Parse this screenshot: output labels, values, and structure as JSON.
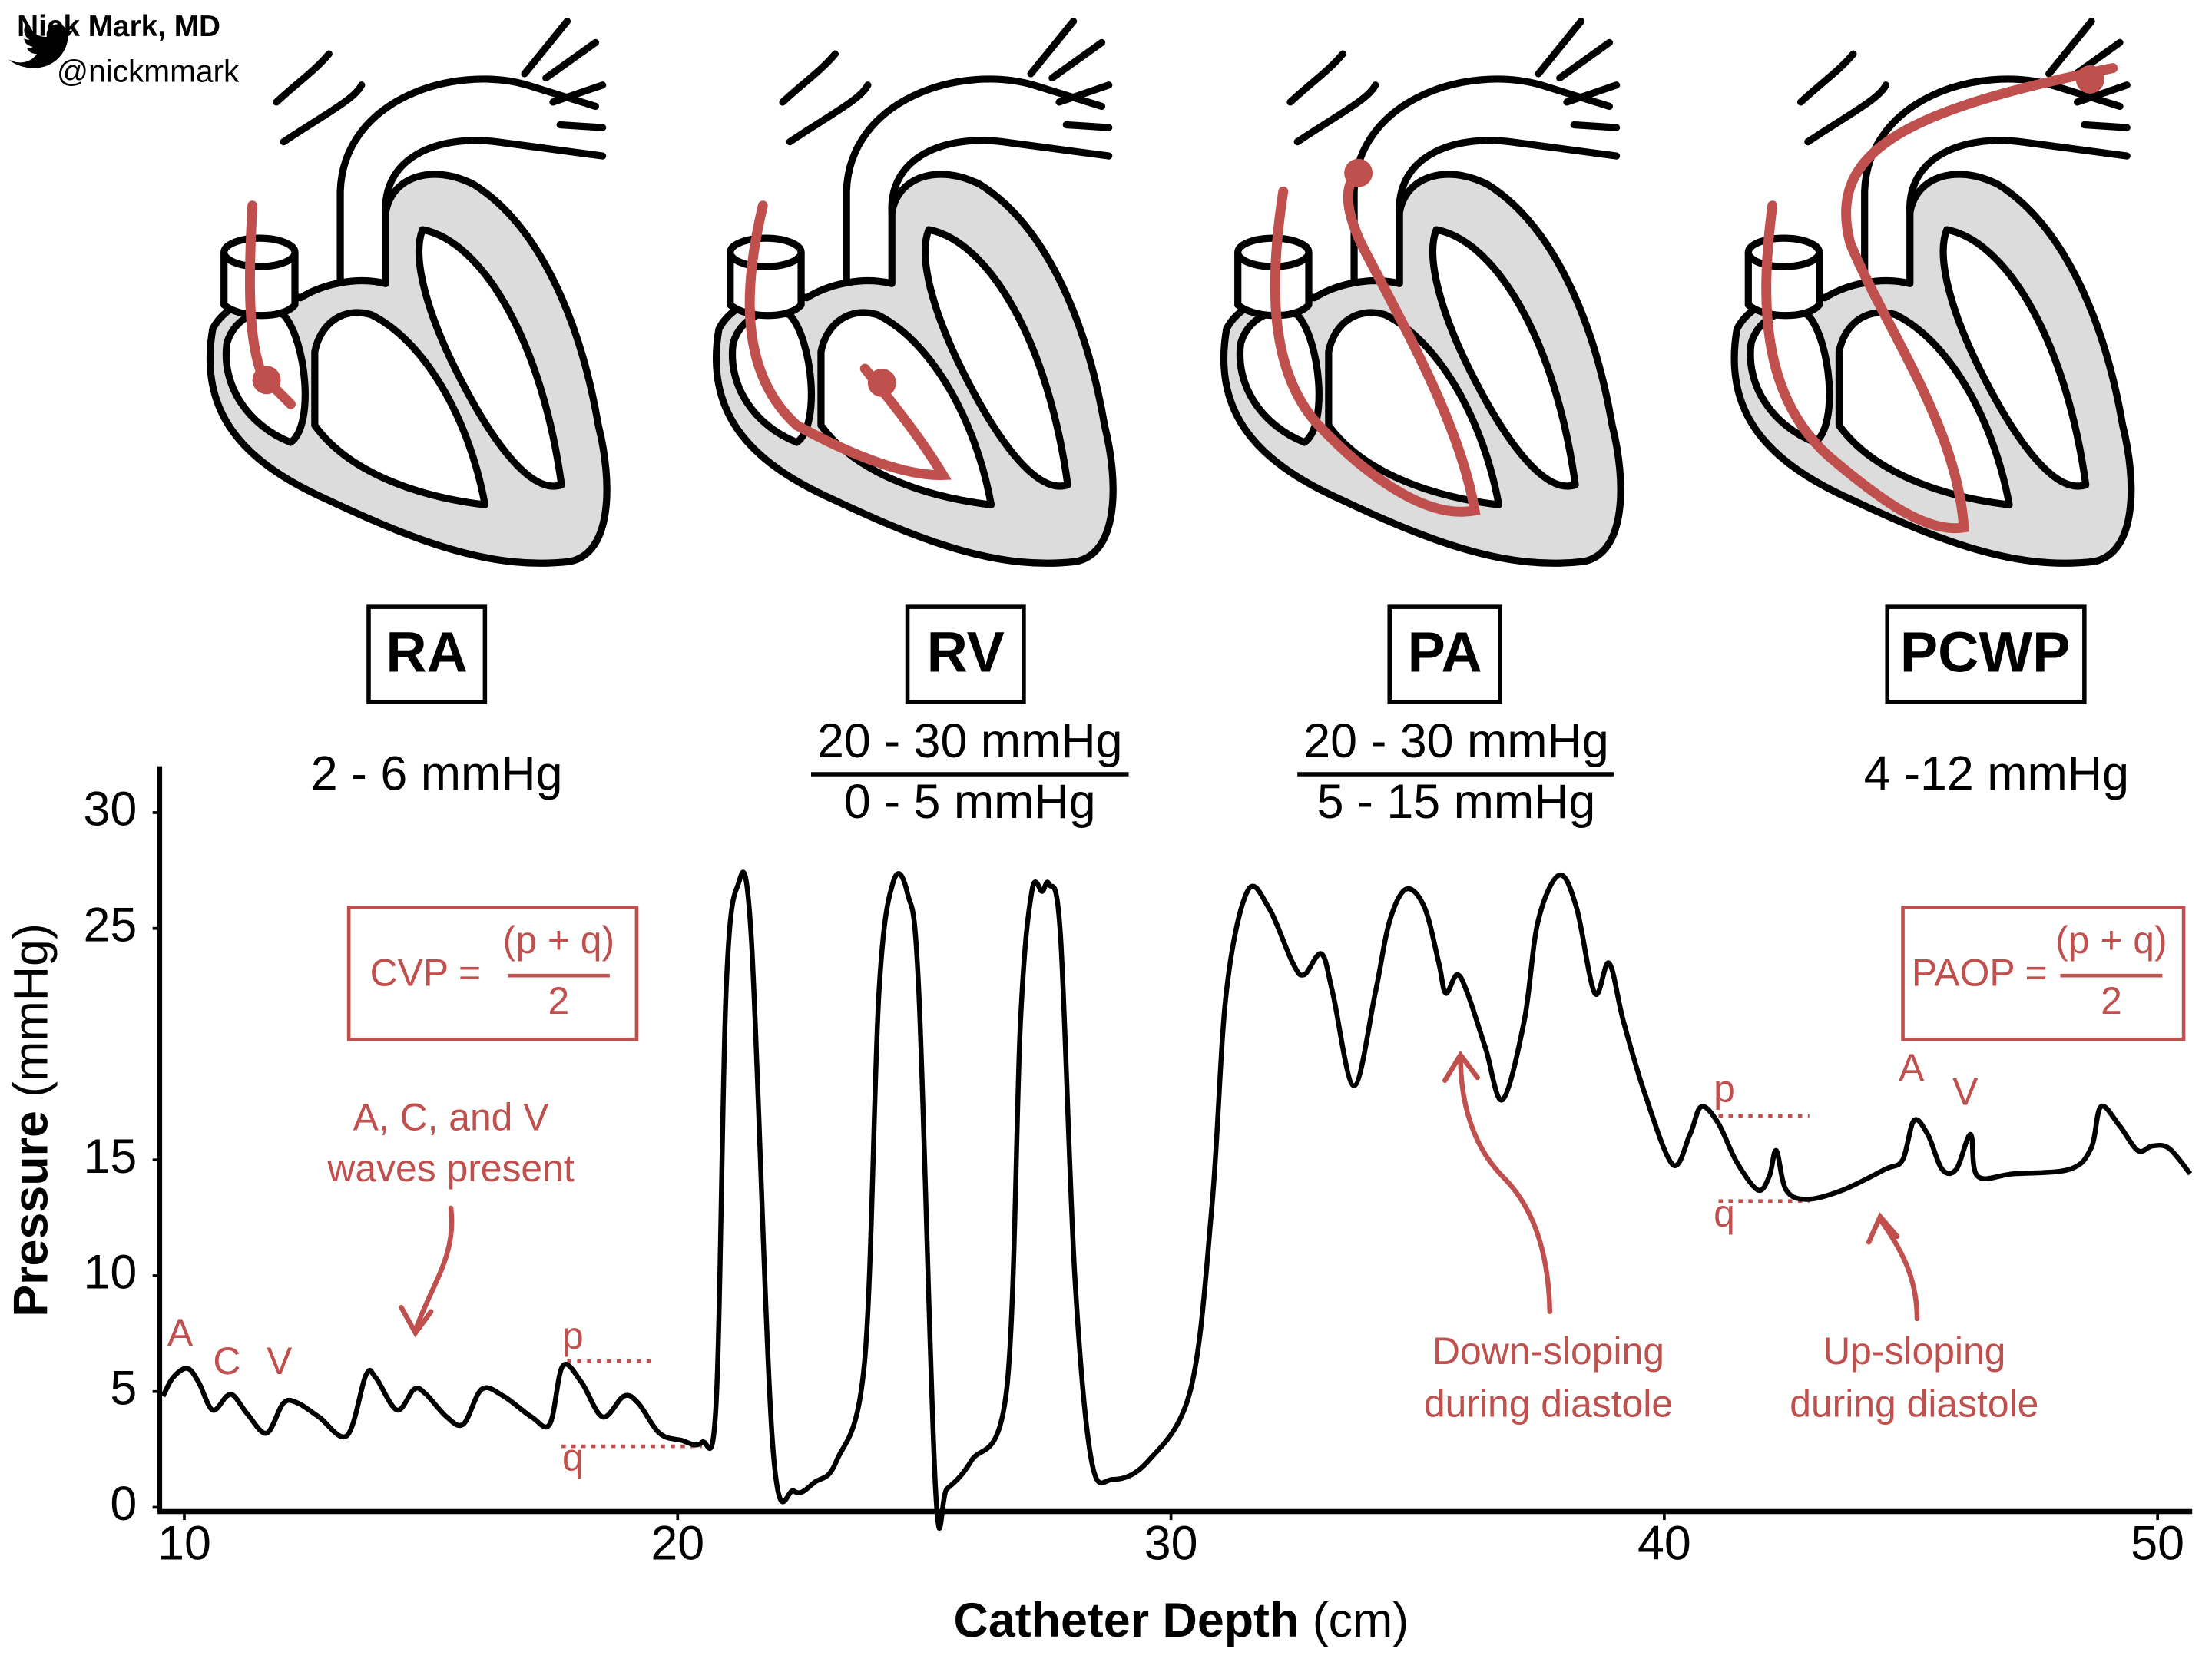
{
  "author": "Nick Mark, MD",
  "handle": "@nickmmark",
  "panels": [
    {
      "label": "RA",
      "pressure": [
        "2 - 6 mmHg"
      ]
    },
    {
      "label": "RV",
      "pressure": [
        "20 - 30 mmHg",
        "0 - 5 mmHg"
      ]
    },
    {
      "label": "PA",
      "pressure": [
        "20 - 30 mmHg",
        "5 - 15 mmHg"
      ]
    },
    {
      "label": "PCWP",
      "pressure": [
        "4 -12 mmHg"
      ]
    }
  ],
  "formulas": [
    {
      "name": "CVP =",
      "numerator": "(p + q)",
      "denominator": "2"
    },
    {
      "name": "PAOP =",
      "numerator": "(p + q)",
      "denominator": "2"
    }
  ],
  "annotations": {
    "acv": [
      "A, C, and V",
      "waves present"
    ],
    "ra_waves": [
      "A",
      "C",
      "V"
    ],
    "ra_p": "p",
    "ra_q": "q",
    "down": [
      "Down-sloping",
      "during diastole"
    ],
    "up": [
      "Up-sloping",
      "during diastole"
    ],
    "pcwp_p": "p",
    "pcwp_q": "q",
    "pcwp_waves": [
      "A",
      "V"
    ]
  },
  "chart_data": {
    "type": "line",
    "xlabel": [
      "Catheter Depth",
      "(cm)"
    ],
    "ylabel": [
      "Pressure",
      "(mmHg)"
    ],
    "xlim": [
      9.5,
      50.7
    ],
    "ylim": [
      0,
      32
    ],
    "xticks": [
      10,
      20,
      30,
      40,
      50
    ],
    "yticks": [
      0,
      5,
      10,
      15,
      25,
      30
    ],
    "color": "#000000",
    "grid": false,
    "x": [
      9.57,
      9.77,
      10.06,
      10.29,
      10.57,
      10.86,
      11.01,
      11.29,
      11.67,
      12.01,
      12.3,
      12.73,
      13.3,
      13.68,
      13.88,
      14.31,
      14.66,
      14.89,
      15.32,
      15.66,
      16.03,
      16.47,
      17.04,
      17.41,
      17.67,
      18.05,
      18.48,
      18.91,
      19.2,
      19.63,
      20.06,
      20.49,
      20.78,
      20.98,
      21.21,
      21.49,
      21.93,
      22.36,
      22.79,
      23.22,
      23.79,
      24.08,
      24.37,
      24.66,
      24.89,
      25.23,
      25.46,
      25.95,
      26.67,
      26.95,
      27.18,
      27.39,
      27.53,
      27.76,
      28.05,
      28.39,
      28.82,
      29.54,
      30.4,
      30.83,
      31.12,
      31.55,
      31.98,
      32.47,
      32.7,
      33.05,
      33.28,
      33.71,
      34.14,
      34.43,
      34.77,
      35.14,
      35.43,
      35.57,
      35.8,
      36.01,
      36.38,
      36.72,
      37.16,
      37.44,
      37.87,
      38.22,
      38.59,
      38.88,
      39.17,
      39.6,
      40.17,
      40.52,
      40.75,
      41.09,
      41.47,
      41.9,
      42.13,
      42.27,
      42.47,
      42.9,
      43.62,
      44.48,
      44.83,
      45.06,
      45.34,
      45.63,
      45.92,
      46.21,
      46.35,
      47.07,
      48.22,
      48.65,
      48.85,
      49.22,
      49.6,
      49.89,
      50.23,
      50.66
    ],
    "values": [
      4.8,
      5.6,
      6.0,
      5.4,
      4.2,
      4.8,
      4.8,
      4.0,
      3.2,
      4.5,
      4.5,
      3.9,
      3.1,
      5.7,
      5.6,
      4.2,
      5.1,
      4.9,
      3.9,
      3.6,
      5.1,
      4.8,
      3.9,
      3.6,
      6.1,
      5.4,
      3.9,
      4.8,
      4.5,
      3.2,
      2.9,
      2.8,
      4.5,
      22.2,
      26.8,
      24.7,
      2.6,
      0.7,
      1.1,
      2.0,
      6.3,
      22.2,
      27.0,
      26.5,
      22.2,
      0.7,
      0.8,
      2.0,
      5.1,
      21.0,
      26.6,
      26.6,
      26.9,
      24.7,
      10.0,
      2.0,
      1.2,
      2.0,
      5.1,
      13.0,
      22.2,
      26.6,
      25.9,
      23.5,
      23.0,
      23.9,
      22.2,
      18.2,
      22.2,
      25.3,
      26.7,
      25.9,
      23.5,
      22.2,
      23.0,
      22.2,
      19.8,
      17.6,
      21.0,
      25.3,
      27.3,
      25.9,
      22.2,
      23.5,
      21.0,
      17.9,
      14.8,
      16.1,
      17.3,
      16.6,
      14.9,
      13.7,
      14.3,
      15.4,
      13.7,
      13.3,
      13.7,
      14.6,
      15.0,
      16.7,
      16.1,
      14.6,
      14.6,
      16.1,
      14.3,
      14.4,
      14.6,
      15.5,
      17.3,
      16.5,
      15.4,
      15.6,
      15.5,
      14.4
    ]
  }
}
